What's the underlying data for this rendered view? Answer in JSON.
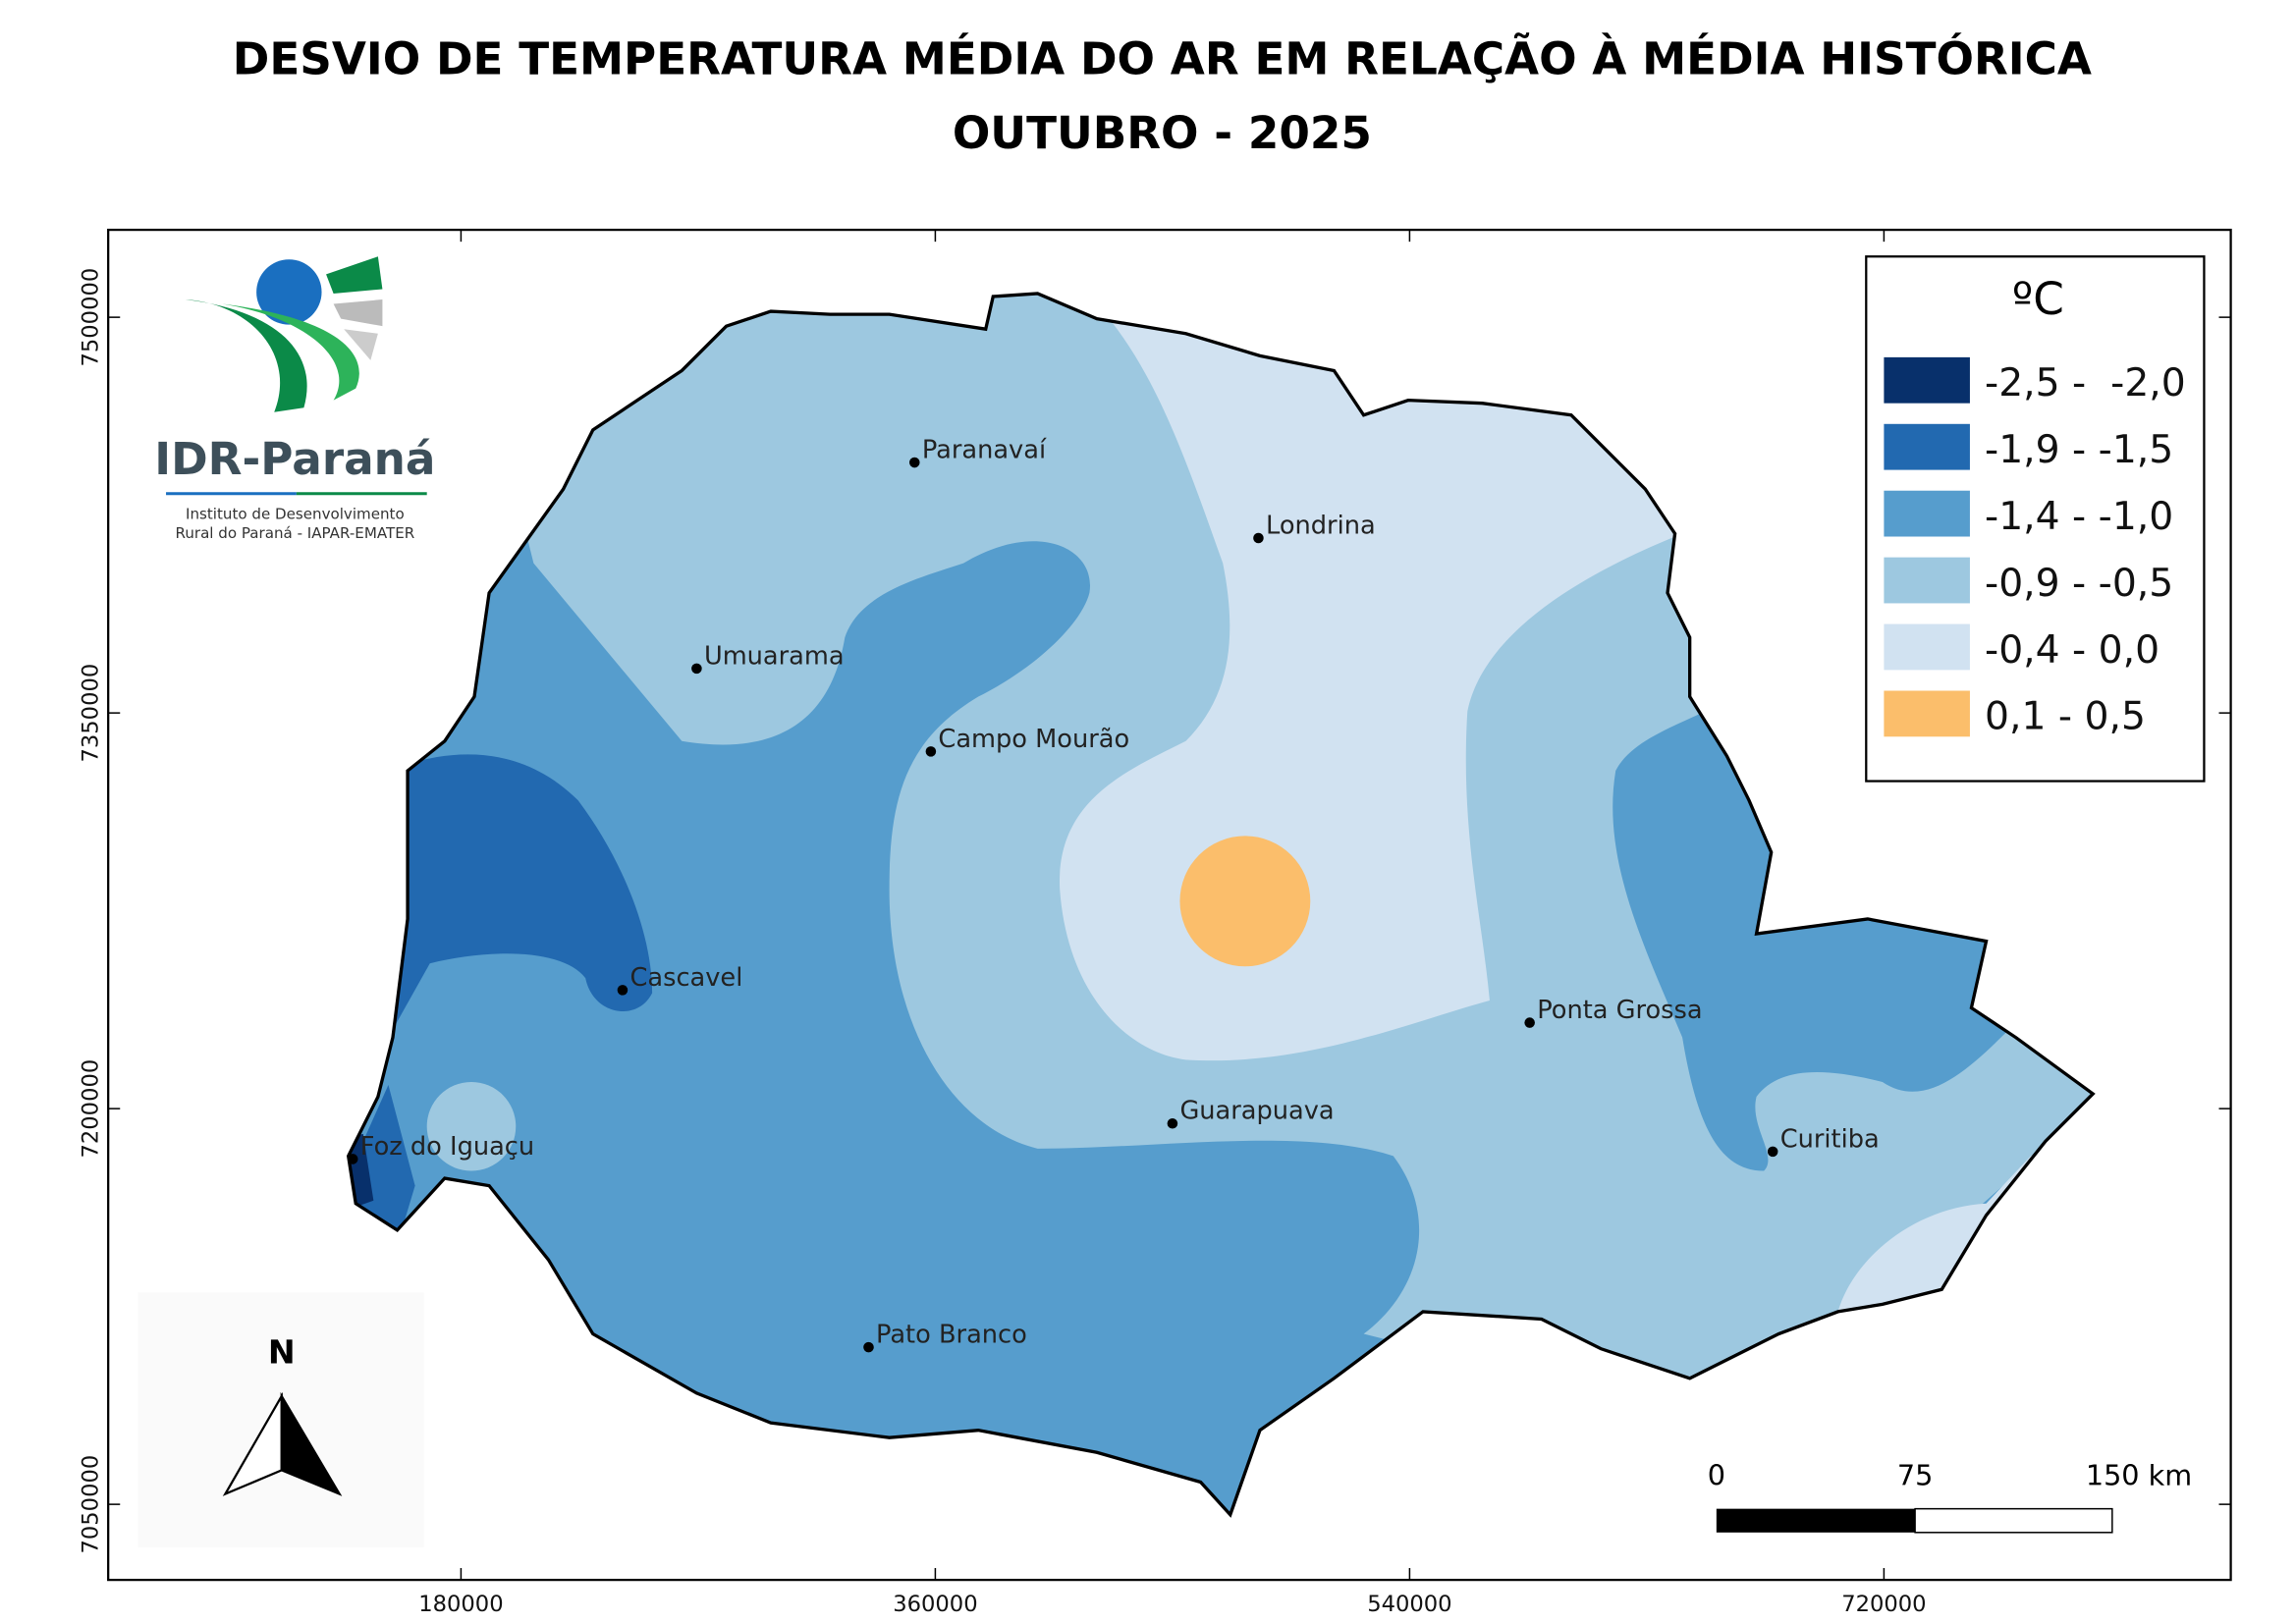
{
  "title": [
    "DESVIO DE TEMPERATURA MÉDIA DO AR EM RELAÇÃO À MÉDIA HISTÓRICA",
    "OUTUBRO - 2025"
  ],
  "map": {
    "xticks": [
      180000,
      360000,
      540000,
      720000
    ],
    "yticks": [
      7500000,
      7350000,
      7200000,
      7050000
    ]
  },
  "legend": {
    "title": "ºC",
    "items": [
      {
        "label": "-2,5 -  -2,0",
        "color": "#08306b"
      },
      {
        "label": "-1,9 - -1,5",
        "color": "#2269b0"
      },
      {
        "label": "-1,4 - -1,0",
        "color": "#569dcd"
      },
      {
        "label": "-0,9 - -0,5",
        "color": "#9dc8e0"
      },
      {
        "label": "-0,4 - 0,0",
        "color": "#d1e2f1"
      },
      {
        "label": "0,1 - 0,5",
        "color": "#fbbe6b"
      }
    ]
  },
  "cities": [
    "Paranavaí",
    "Londrina",
    "Umuarama",
    "Campo Mourão",
    "Cascavel",
    "Foz do Iguaçu",
    "Ponta Grossa",
    "Guarapuava",
    "Curitiba",
    "Pato Branco"
  ],
  "logo": {
    "name": "IDR-Paraná",
    "subtitle": [
      "Instituto de Desenvolvimento",
      "Rural do Paraná - IAPAR-EMATER"
    ]
  },
  "north": "N",
  "scale_bar": {
    "labels": [
      "0",
      "75",
      "150 km"
    ]
  }
}
